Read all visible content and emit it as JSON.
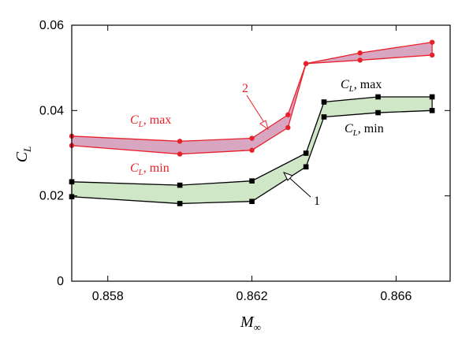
{
  "chart_data": {
    "type": "line",
    "xlabel": "M",
    "xlabel_sub": "∞",
    "ylabel": "C",
    "ylabel_sub": "L",
    "xlim": [
      0.857,
      0.8675
    ],
    "ylim": [
      0,
      0.06
    ],
    "xticks": [
      0.858,
      0.862,
      0.866
    ],
    "xtick_labels": [
      "0.858",
      "0.862",
      "0.866"
    ],
    "yticks": [
      0,
      0.02,
      0.04,
      0.06
    ],
    "ytick_labels": [
      "0",
      "0.02",
      "0.04",
      "0.06"
    ],
    "grid": false,
    "series": [
      {
        "id": "red-max",
        "marker": "circle",
        "color": "#e8202a",
        "x": [
          0.857,
          0.86,
          0.862,
          0.863,
          0.8635,
          0.865,
          0.867
        ],
        "y": [
          0.034,
          0.0328,
          0.0335,
          0.039,
          0.051,
          0.0535,
          0.056
        ]
      },
      {
        "id": "red-min",
        "marker": "circle",
        "color": "#e8202a",
        "x": [
          0.857,
          0.86,
          0.862,
          0.863,
          0.8635,
          0.865,
          0.867
        ],
        "y": [
          0.0318,
          0.0298,
          0.0307,
          0.036,
          0.051,
          0.0518,
          0.053
        ]
      },
      {
        "id": "black-max",
        "marker": "square",
        "color": "#000000",
        "x": [
          0.857,
          0.86,
          0.862,
          0.8635,
          0.864,
          0.8655,
          0.867
        ],
        "y": [
          0.0233,
          0.0225,
          0.0235,
          0.03,
          0.042,
          0.0432,
          0.0432
        ]
      },
      {
        "id": "black-min",
        "marker": "square",
        "color": "#000000",
        "x": [
          0.857,
          0.86,
          0.862,
          0.8635,
          0.864,
          0.8655,
          0.867
        ],
        "y": [
          0.0198,
          0.0182,
          0.0187,
          0.0268,
          0.0385,
          0.0395,
          0.04
        ]
      }
    ],
    "bands": [
      {
        "upper": "red-max",
        "lower": "red-min",
        "fill": "#d9a6c2"
      },
      {
        "upper": "black-max",
        "lower": "black-min",
        "fill": "#cfe6c7"
      }
    ],
    "annotations": {
      "red_max": {
        "main": "C",
        "sub": "L",
        "rest": ", max",
        "color": "#e8202a"
      },
      "red_min": {
        "main": "C",
        "sub": "L",
        "rest": ", min",
        "color": "#e8202a"
      },
      "black_max": {
        "main": "C",
        "sub": "L",
        "rest": ", max",
        "color": "#000000"
      },
      "black_min": {
        "main": "C",
        "sub": "L",
        "rest": ", min",
        "color": "#000000"
      },
      "label_2": {
        "text": "2",
        "color": "#e8202a"
      },
      "label_1": {
        "text": "1",
        "color": "#000000"
      }
    }
  }
}
